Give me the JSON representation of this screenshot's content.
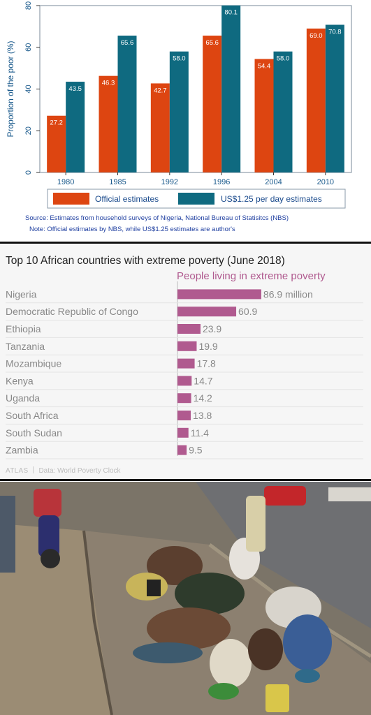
{
  "chart_data": [
    {
      "type": "bar",
      "ylabel": "Proportion of the poor (%)",
      "ylim": [
        0,
        80
      ],
      "yticks": [
        0,
        20,
        40,
        60,
        80
      ],
      "categories": [
        "1980",
        "1985",
        "1992",
        "1996",
        "2004",
        "2010"
      ],
      "series": [
        {
          "name": "Official estimates",
          "color": "#dd4511",
          "values": [
            27.2,
            46.3,
            42.7,
            65.6,
            54.4,
            69.0
          ],
          "labels": [
            "27.2",
            "46.3",
            "42.7",
            "65.6",
            "54.4",
            "69.0"
          ]
        },
        {
          "name": "US$1.25  per day estimates",
          "color": "#0f6a80",
          "values": [
            43.5,
            65.6,
            58.0,
            80.1,
            58.0,
            70.8
          ],
          "labels": [
            "43.5",
            "65.6",
            "58.0",
            "80.1",
            "58.0",
            "70.8"
          ]
        }
      ],
      "legend_position": "bottom",
      "source": "Source: Estimates from household surveys of Nigeria, National Bureau of Statisitcs (NBS)",
      "note": "Note: Official estimates by NBS, while US$1.25 estimates are  author's"
    },
    {
      "type": "bar",
      "orientation": "horizontal",
      "title": "Top 10 African countries with extreme poverty (June 2018)",
      "subtitle": "People living in extreme poverty",
      "categories": [
        "Nigeria",
        "Democratic Republic of Congo",
        "Ethiopia",
        "Tanzania",
        "Mozambique",
        "Kenya",
        "Uganda",
        "South Africa",
        "South Sudan",
        "Zambia"
      ],
      "values": [
        86.9,
        60.9,
        23.9,
        19.9,
        17.8,
        14.7,
        14.2,
        13.8,
        11.4,
        9.5
      ],
      "labels": [
        "86.9 million",
        "60.9",
        "23.9",
        "19.9",
        "17.8",
        "14.7",
        "14.2",
        "13.8",
        "11.4",
        "9.5"
      ],
      "color": "#b05a8f",
      "brand": "ATLAS",
      "footer": "Data: World Poverty Clock"
    }
  ],
  "photo": {
    "name": "street-scene-photo"
  }
}
